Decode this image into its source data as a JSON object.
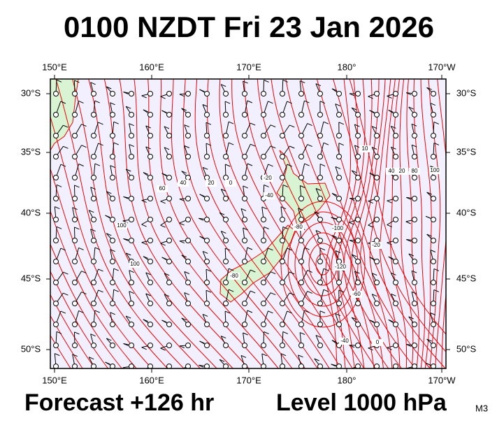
{
  "title": "0100 NZDT Fri 23 Jan 2026",
  "map": {
    "top_labels": [
      "150°E",
      "160°E",
      "170°E",
      "180°",
      "170°W"
    ],
    "bottom_labels": [
      "150°E",
      "160°E",
      "170°E",
      "180°",
      "170°W"
    ],
    "left_labels": [
      "30°S",
      "35°S",
      "40°S",
      "45°S",
      "50°S"
    ],
    "right_labels": [
      "30°S",
      "35°S",
      "40°S",
      "45°S",
      "50°S"
    ],
    "contour_labels": [
      "60",
      "40",
      "20",
      "0",
      "-20",
      "-40",
      "-80",
      "-100",
      "-120",
      "-60",
      "-20",
      "0",
      "10",
      "100",
      "100",
      "80",
      "40",
      "20",
      "100",
      "-80",
      "-40"
    ]
  },
  "footer": {
    "forecast": "Forecast +126 hr",
    "level": "Level 1000 hPa",
    "model": "M3"
  }
}
